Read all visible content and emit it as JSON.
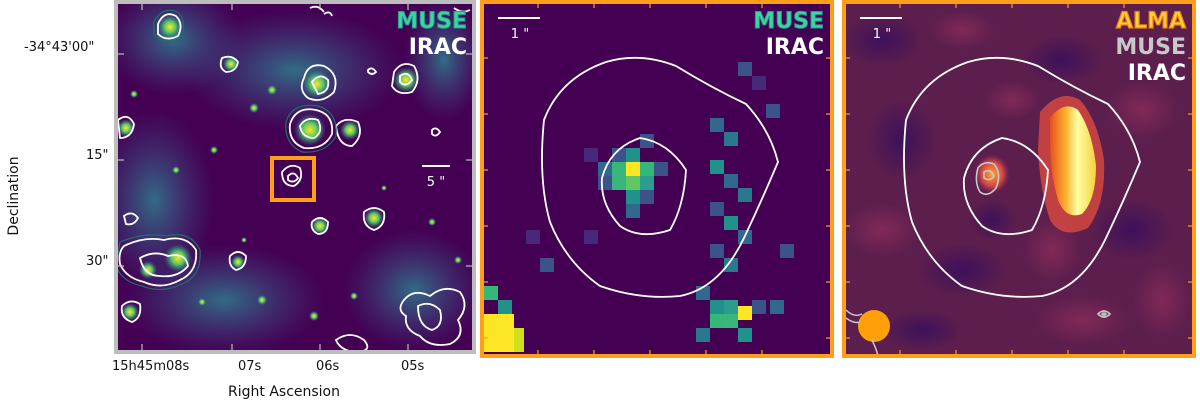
{
  "axes": {
    "ylabel": "Declination",
    "xlabel": "Right Ascension",
    "dec_ticks": [
      "-34°43'00\"",
      "15\"",
      "30\""
    ],
    "ra_ticks": [
      "15h45m08s",
      "07s",
      "06s",
      "05s"
    ]
  },
  "panels": [
    {
      "id": "left",
      "legend": [
        "MUSE",
        "IRAC"
      ],
      "scalebar": "5 \"",
      "border_color": "#bdbdbd"
    },
    {
      "id": "middle",
      "legend": [
        "MUSE",
        "IRAC"
      ],
      "scalebar": "1 \"",
      "border_color": "#ff9e1b"
    },
    {
      "id": "right",
      "legend": [
        "ALMA",
        "MUSE",
        "IRAC"
      ],
      "scalebar": "1 \"",
      "border_color": "#ff9e1b"
    }
  ],
  "colors": {
    "viridis_bg": "#440154",
    "inferno_bg": "#5b1e4d",
    "muse_text": "#3ad8a0",
    "alma_text": "#ffd23a",
    "muse_gray": "#c8c8c8",
    "highlight_box": "#ff9e1b"
  }
}
